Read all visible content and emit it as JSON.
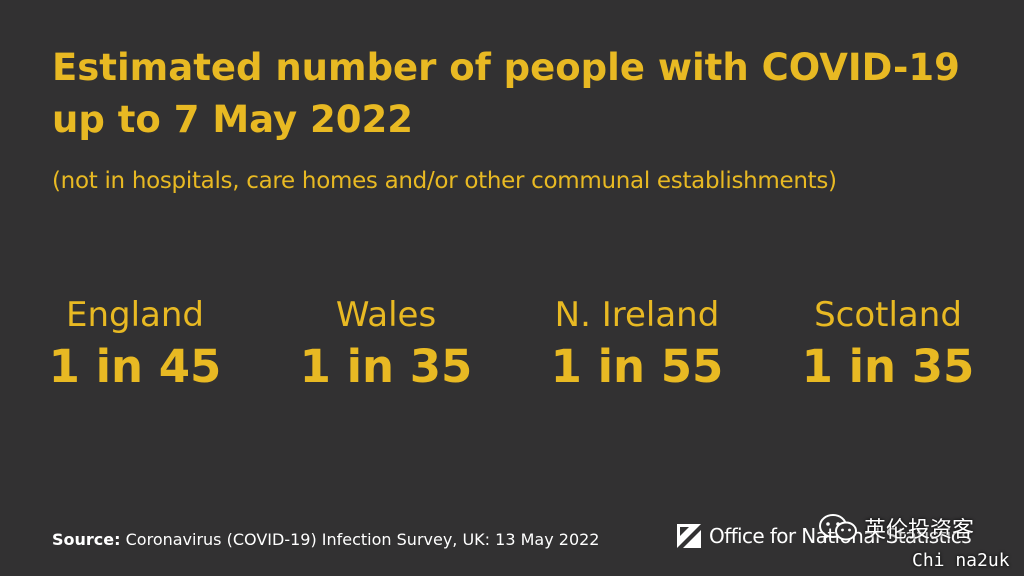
{
  "title": "Estimated number of people with COVID-19 up to 7 May 2022",
  "subtitle": "(not in hospitals, care homes and/or other communal establishments)",
  "stats": [
    {
      "region": "England",
      "ratio": "1 in 45"
    },
    {
      "region": "Wales",
      "ratio": "1 in 35"
    },
    {
      "region": "N. Ireland",
      "ratio": "1 in 55"
    },
    {
      "region": "Scotland",
      "ratio": "1 in 35"
    }
  ],
  "source": {
    "label": "Source:",
    "text": "Coronavirus (COVID-19) Infection Survey, UK: 13 May 2022"
  },
  "logo": {
    "text": "Office for National Statistics"
  },
  "watermark": {
    "name": "英伦投资客",
    "sub": "Chi na2uk"
  },
  "colors": {
    "background": "#323132",
    "accent": "#e8b923",
    "text": "#ffffff"
  }
}
